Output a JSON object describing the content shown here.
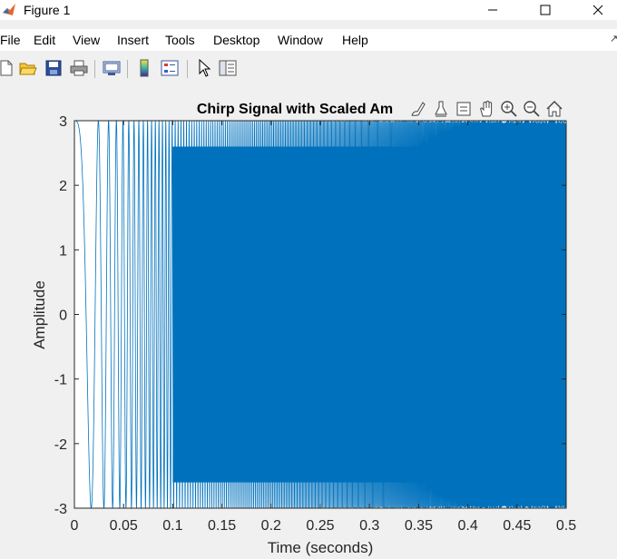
{
  "window": {
    "title": "Figure 1",
    "icon": "matlab-logo-icon",
    "controls": [
      "minimize-icon",
      "maximize-icon",
      "close-icon"
    ]
  },
  "menu": {
    "items": [
      "File",
      "Edit",
      "View",
      "Insert",
      "Tools",
      "Desktop",
      "Window",
      "Help"
    ]
  },
  "toolbar": {
    "buttons": [
      "new-figure-icon",
      "open-file-icon",
      "save-icon",
      "print-icon",
      "link-plot-icon",
      "insert-colorbar-icon",
      "insert-legend-icon",
      "edit-plot-icon",
      "property-inspector-icon"
    ]
  },
  "axes_toolbar": {
    "buttons": [
      "brush-icon",
      "data-tips-icon",
      "restore-view-icon",
      "pan-icon",
      "zoom-in-icon",
      "zoom-out-icon",
      "home-icon"
    ]
  },
  "chart_data": {
    "type": "line",
    "title": "Chirp Signal with Scaled Am",
    "xlabel": "Time (seconds)",
    "ylabel": "Amplitude",
    "xlim": [
      0,
      0.5
    ],
    "ylim": [
      -3,
      3
    ],
    "xticks": [
      "0",
      "0.05",
      "0.1",
      "0.15",
      "0.2",
      "0.25",
      "0.3",
      "0.35",
      "0.4",
      "0.45",
      "0.5"
    ],
    "yticks": [
      "3",
      "2",
      "1",
      "0",
      "-1",
      "-2",
      "-3"
    ],
    "series": [
      {
        "color": "#0072bd",
        "amplitude": 3,
        "start_time": 0,
        "end_time": 0.5
      }
    ],
    "grid": false
  }
}
